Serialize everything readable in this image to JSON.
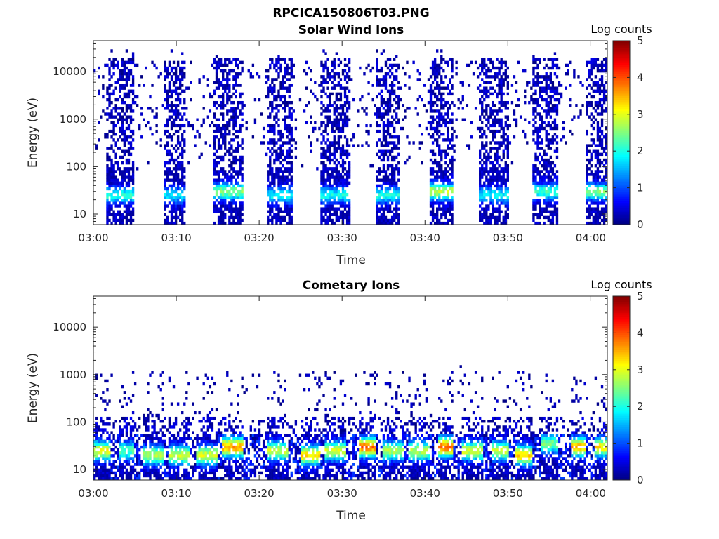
{
  "figure": {
    "title": "RPCICA150806T03.PNG"
  },
  "chart_data": [
    {
      "type": "heatmap",
      "title": "Solar Wind Ions",
      "xlabel": "Time",
      "ylabel": "Energy (eV)",
      "y_scale": "log",
      "xlim": [
        "03:00",
        "04:02"
      ],
      "ylim": [
        6,
        45000
      ],
      "x_ticks": [
        "03:00",
        "03:10",
        "03:20",
        "03:30",
        "03:40",
        "03:50",
        "04:00"
      ],
      "y_ticks": [
        "10",
        "100",
        "1000",
        "10000"
      ],
      "y_tick_values": [
        10,
        100,
        1000,
        10000
      ],
      "colorbar": {
        "label": "Log counts",
        "range": [
          0,
          5
        ],
        "ticks": [
          "0",
          "1",
          "2",
          "3",
          "4",
          "5"
        ],
        "colormap": "jet"
      },
      "bursts": [
        {
          "start": "03:01.5",
          "end": "03:05.0",
          "peak_energy": 25,
          "peak_log_counts": 1.8
        },
        {
          "start": "03:08.5",
          "end": "03:11.0",
          "peak_energy": 25,
          "peak_log_counts": 1.5
        },
        {
          "start": "03:14.5",
          "end": "03:18.0",
          "peak_energy": 30,
          "peak_log_counts": 2.3
        },
        {
          "start": "03:21.0",
          "end": "03:24.0",
          "peak_energy": 25,
          "peak_log_counts": 1.6
        },
        {
          "start": "03:27.5",
          "end": "03:31.0",
          "peak_energy": 25,
          "peak_log_counts": 1.7
        },
        {
          "start": "03:34.0",
          "end": "03:37.0",
          "peak_energy": 25,
          "peak_log_counts": 1.7
        },
        {
          "start": "03:40.5",
          "end": "03:43.5",
          "peak_energy": 30,
          "peak_log_counts": 2.6
        },
        {
          "start": "03:46.5",
          "end": "03:50.0",
          "peak_energy": 25,
          "peak_log_counts": 1.6
        },
        {
          "start": "03:53.0",
          "end": "03:56.0",
          "peak_energy": 30,
          "peak_log_counts": 1.9
        },
        {
          "start": "03:59.5",
          "end": "04:02.0",
          "peak_energy": 30,
          "peak_log_counts": 2.2
        }
      ]
    },
    {
      "type": "heatmap",
      "title": "Cometary Ions",
      "xlabel": "Time",
      "ylabel": "Energy (eV)",
      "y_scale": "log",
      "xlim": [
        "03:00",
        "04:02"
      ],
      "ylim": [
        6,
        45000
      ],
      "x_ticks": [
        "03:00",
        "03:10",
        "03:20",
        "03:30",
        "03:40",
        "03:50",
        "04:00"
      ],
      "y_ticks": [
        "10",
        "100",
        "1000",
        "10000"
      ],
      "y_tick_values": [
        10,
        100,
        1000,
        10000
      ],
      "colorbar": {
        "label": "Log counts",
        "range": [
          0,
          5
        ],
        "ticks": [
          "0",
          "1",
          "2",
          "3",
          "4",
          "5"
        ],
        "colormap": "jet"
      },
      "bursts": [
        {
          "start": "03:00.0",
          "end": "03:02.0",
          "peak_energy": 25,
          "peak_log_counts": 2.8
        },
        {
          "start": "03:03.0",
          "end": "03:05.0",
          "peak_energy": 25,
          "peak_log_counts": 2.0
        },
        {
          "start": "03:06.0",
          "end": "03:08.5",
          "peak_energy": 20,
          "peak_log_counts": 2.5
        },
        {
          "start": "03:09.0",
          "end": "03:11.5",
          "peak_energy": 20,
          "peak_log_counts": 2.6
        },
        {
          "start": "03:12.5",
          "end": "03:15.0",
          "peak_energy": 20,
          "peak_log_counts": 2.7
        },
        {
          "start": "03:15.5",
          "end": "03:18.0",
          "peak_energy": 30,
          "peak_log_counts": 3.4
        },
        {
          "start": "03:21.0",
          "end": "03:23.5",
          "peak_energy": 25,
          "peak_log_counts": 2.6
        },
        {
          "start": "03:25.0",
          "end": "03:27.5",
          "peak_energy": 20,
          "peak_log_counts": 3.0
        },
        {
          "start": "03:28.0",
          "end": "03:30.5",
          "peak_energy": 25,
          "peak_log_counts": 2.7
        },
        {
          "start": "03:32.0",
          "end": "03:34.0",
          "peak_energy": 30,
          "peak_log_counts": 3.6
        },
        {
          "start": "03:35.0",
          "end": "03:37.5",
          "peak_energy": 25,
          "peak_log_counts": 2.5
        },
        {
          "start": "03:38.0",
          "end": "03:40.5",
          "peak_energy": 25,
          "peak_log_counts": 2.5
        },
        {
          "start": "03:41.5",
          "end": "03:43.5",
          "peak_energy": 30,
          "peak_log_counts": 3.7
        },
        {
          "start": "03:44.5",
          "end": "03:47.0",
          "peak_energy": 25,
          "peak_log_counts": 2.7
        },
        {
          "start": "03:48.0",
          "end": "03:50.0",
          "peak_energy": 25,
          "peak_log_counts": 2.6
        },
        {
          "start": "03:51.0",
          "end": "03:53.0",
          "peak_energy": 20,
          "peak_log_counts": 3.1
        },
        {
          "start": "03:54.0",
          "end": "03:56.0",
          "peak_energy": 35,
          "peak_log_counts": 2.2
        },
        {
          "start": "03:57.5",
          "end": "03:59.5",
          "peak_energy": 30,
          "peak_log_counts": 3.3
        },
        {
          "start": "04:00.5",
          "end": "04:02.0",
          "peak_energy": 30,
          "peak_log_counts": 3.0
        }
      ]
    }
  ]
}
